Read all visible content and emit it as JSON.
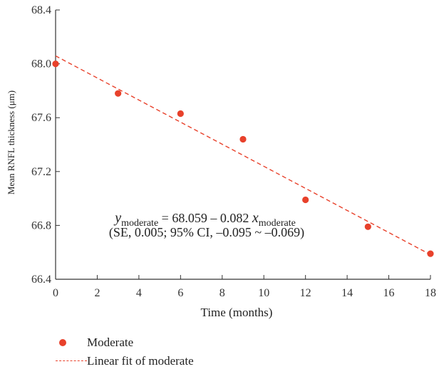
{
  "colors": {
    "accent": "#e8412b",
    "axis": "#333333"
  },
  "chart_data": {
    "type": "scatter",
    "xlabel": "Time (months)",
    "ylabel": "Mean RNFL thickness (μm)",
    "xlim": [
      0,
      18
    ],
    "ylim": [
      66.4,
      68.4
    ],
    "xticks": [
      0,
      2,
      4,
      6,
      8,
      10,
      12,
      14,
      16,
      18
    ],
    "yticks": [
      66.4,
      66.8,
      67.2,
      67.6,
      68.0,
      68.4
    ],
    "ytick_labels": [
      "66.4",
      "66.8",
      "67.2",
      "67.6",
      "68.0",
      "68.4"
    ],
    "grid": false,
    "series": [
      {
        "name": "Moderate",
        "kind": "scatter",
        "x": [
          0,
          3,
          6,
          9,
          12,
          15,
          18
        ],
        "y": [
          68.0,
          67.78,
          67.63,
          67.44,
          66.99,
          66.79,
          66.59
        ]
      },
      {
        "name": "Linear fit of moderate",
        "kind": "line",
        "style": "dashed",
        "intercept": 68.059,
        "slope": -0.082
      }
    ],
    "annotation": {
      "equation_y": "y",
      "equation_sub": "moderate",
      "equation_mid": " = 68.059 – 0.082 ",
      "equation_x": "x",
      "equation_x_sub": "moderate",
      "stats": "(SE, 0.005; 95% CI, –0.095 ~ –0.069)"
    },
    "legend_position": "bottom-left"
  }
}
